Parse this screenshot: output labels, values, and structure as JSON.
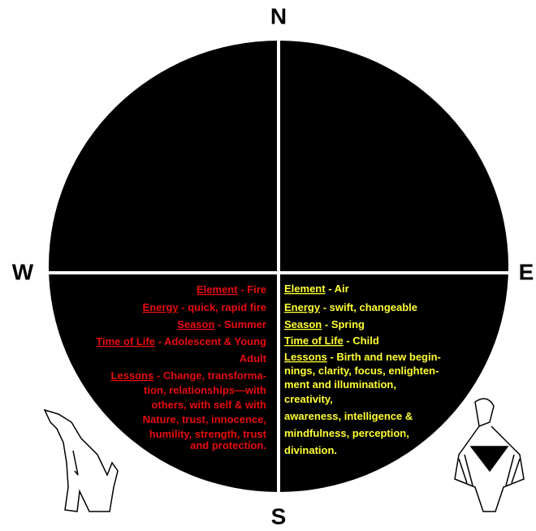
{
  "compass": {
    "north": "N",
    "south": "S",
    "east": "E",
    "west": "W"
  },
  "west": {
    "items": [
      {
        "label": "Element",
        "lines": [
          "- Fire"
        ]
      },
      {
        "label": "Energy",
        "lines": [
          "- quick, rapid fire"
        ]
      },
      {
        "label": "Season",
        "lines": [
          "- Summer"
        ]
      },
      {
        "label": "Time of Life",
        "lines": [
          "- Adolescent & Young",
          "Adult"
        ]
      },
      {
        "label": "Lessons",
        "lines": [
          "- Change, transforma-",
          "tion, relationships—with",
          "others, with self & with",
          "Nature, trust, innocence,",
          "humility, strength, trust",
          "and  protection."
        ]
      }
    ]
  },
  "east": {
    "items": [
      {
        "label": "Element",
        "lines": [
          "- Air"
        ]
      },
      {
        "label": "Energy",
        "lines": [
          "-  swift, changeable"
        ]
      },
      {
        "label": "Season",
        "lines": [
          "- Spring"
        ]
      },
      {
        "label": "Time of Life",
        "lines": [
          "- Child"
        ]
      },
      {
        "label": "Lessons",
        "lines": [
          "- Birth and new begin-",
          "nings, clarity, focus, enlighten-",
          "ment and illumination,",
          "creativity,",
          "awareness, intelligence &",
          "mindfulness, perception,",
          "divination."
        ]
      }
    ]
  }
}
